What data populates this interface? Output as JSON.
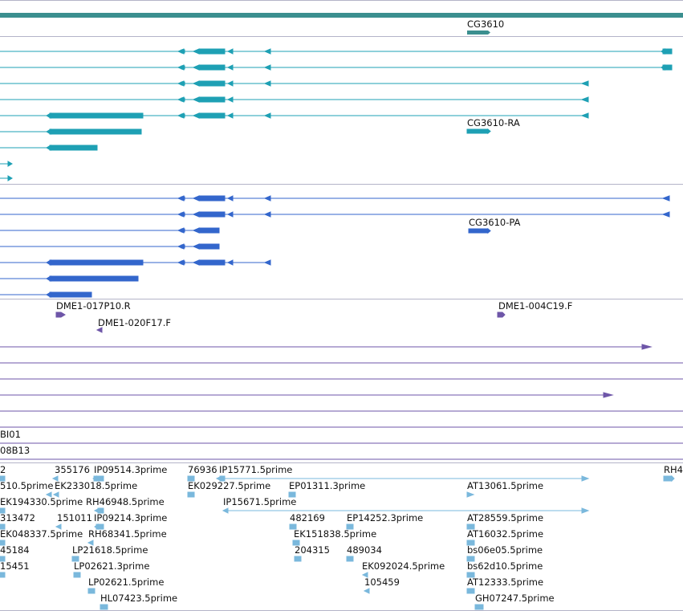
{
  "colors": {
    "gene": "#3b8f8f",
    "transcript": "#1ea0b4",
    "protein": "#3366cc",
    "clone": "#6e56a8",
    "est": "#7ab8dc",
    "separator": "#8a8ab0"
  },
  "gene": {
    "label": "CG3610"
  },
  "transcript": {
    "label": "CG3610-RA"
  },
  "protein": {
    "label": "CG3610-PA"
  },
  "clones": {
    "label1": "DME1-017P10.R",
    "label2": "DME1-020F17.F",
    "label3": "DME1-004C19.F"
  },
  "scaffolds": {
    "label1": "BI01",
    "label2": "08B13"
  },
  "ests": [
    "2",
    "355176",
    "IP09514.3prime",
    "76936",
    "IP15771.5prime",
    "RH4",
    "510.5prime",
    "EK233018.5prime",
    "EK029227.5prime",
    "EP01311.3prime",
    "AT13061.5prime",
    "EK194330.5prime",
    "RH46948.5prime",
    "IP15671.5prime",
    "313472",
    "151011",
    "IP09214.3prime",
    "482169",
    "EP14252.3prime",
    "AT28559.5prime",
    "EK048337.5prime",
    "RH68341.5prime",
    "EK151838.5prime",
    "AT16032.5prime",
    "45184",
    "LP21618.5prime",
    "204315",
    "489034",
    "bs06e05.5prime",
    "15451",
    "LP02621.3prime",
    "EK092024.5prime",
    "bs62d10.5prime",
    "LP02621.5prime",
    "105459",
    "AT12333.5prime",
    "HL07423.5prime",
    "GH07247.5prime"
  ]
}
